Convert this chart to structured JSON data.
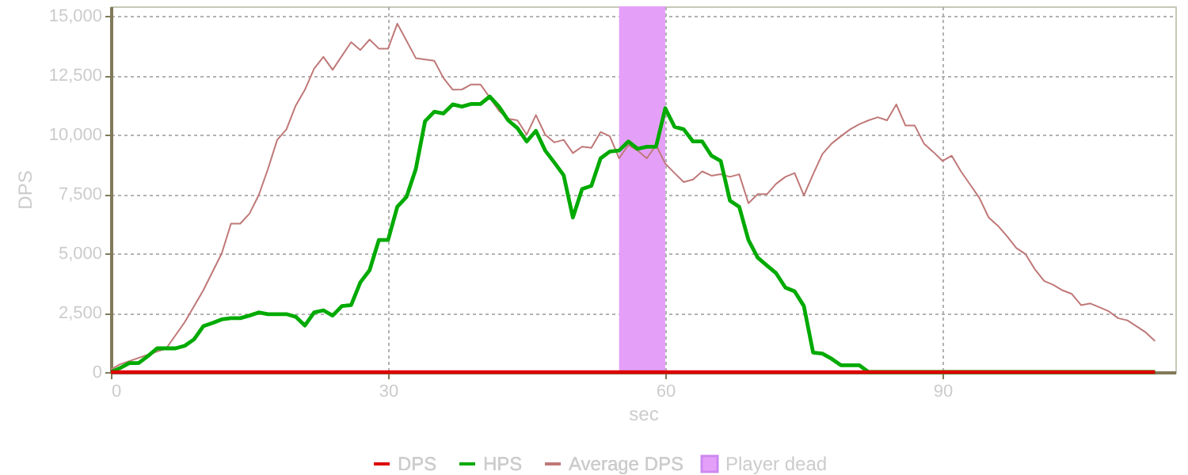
{
  "chart_data": {
    "type": "line",
    "xlabel": "sec",
    "ylabel": "DPS",
    "xlim": [
      0,
      115.2
    ],
    "ylim": [
      0,
      15400
    ],
    "xticks": [
      0,
      30,
      60,
      90
    ],
    "yticks": [
      0,
      {
        "value": 2500,
        "label": "2,500"
      },
      {
        "value": 5000,
        "label": "5,000"
      },
      {
        "value": 7500,
        "label": "7,500"
      },
      {
        "value": 10000,
        "label": "10,000"
      },
      {
        "value": 12500,
        "label": "12,500"
      },
      {
        "value": 15000,
        "label": "15,000"
      }
    ],
    "grid": true,
    "legend": "bottom",
    "line_style": "solid",
    "marker": "none",
    "series": [
      {
        "name": "DPS",
        "color": "#dd0000",
        "x": [
          0,
          113
        ],
        "values": [
          0,
          0
        ]
      },
      {
        "name": "HPS",
        "color": "#00aa00",
        "x": [
          0,
          1,
          2,
          3,
          4,
          5,
          6,
          7,
          8,
          9,
          10,
          11,
          12,
          13,
          14,
          15,
          16,
          17,
          18,
          19,
          20,
          21,
          22,
          23,
          24,
          25,
          26,
          27,
          28,
          29,
          30,
          31,
          32,
          33,
          34,
          35,
          36,
          37,
          38,
          39,
          40,
          41,
          42,
          43,
          44,
          45,
          46,
          47,
          48,
          49,
          50,
          51,
          52,
          53,
          54,
          55,
          56,
          57,
          58,
          59,
          60,
          61,
          62,
          63,
          64,
          65,
          66,
          67,
          68,
          69,
          70,
          71,
          72,
          73,
          74,
          75,
          76,
          77,
          78,
          79,
          80,
          81,
          82,
          113
        ],
        "values": [
          0,
          170,
          380,
          380,
          670,
          1000,
          1000,
          1000,
          1110,
          1380,
          1930,
          2070,
          2220,
          2270,
          2270,
          2380,
          2510,
          2440,
          2440,
          2440,
          2330,
          1960,
          2510,
          2600,
          2380,
          2780,
          2820,
          3780,
          4290,
          5560,
          5560,
          6960,
          7380,
          8550,
          10560,
          10960,
          10890,
          11270,
          11180,
          11290,
          11290,
          11600,
          11180,
          10600,
          10270,
          9710,
          10160,
          9330,
          8820,
          8290,
          6510,
          7710,
          7840,
          9000,
          9290,
          9330,
          9710,
          9400,
          9490,
          9490,
          11110,
          10330,
          10220,
          9710,
          9710,
          9110,
          8890,
          7220,
          6960,
          5560,
          4820,
          4490,
          4160,
          3560,
          3400,
          2780,
          820,
          780,
          560,
          290,
          290,
          290,
          0,
          0
        ]
      },
      {
        "name": "Average DPS",
        "color": "#c07878",
        "x": [
          0,
          1,
          6,
          8,
          10,
          12,
          13,
          14,
          15,
          16,
          17,
          18,
          19,
          20,
          21,
          22,
          23,
          24,
          26,
          27,
          28,
          29,
          30,
          31,
          33,
          35,
          36,
          37,
          38,
          39,
          40,
          41,
          42,
          43,
          44,
          45,
          46,
          47,
          48,
          49,
          50,
          51,
          52,
          53,
          54,
          55,
          56,
          57,
          58,
          59,
          60,
          61,
          62,
          63,
          64,
          65,
          66,
          67,
          68,
          69,
          70,
          71,
          72,
          73,
          74,
          75,
          76,
          77,
          78,
          79,
          80,
          81,
          82,
          83,
          84,
          85,
          86,
          87,
          88,
          89,
          90,
          91,
          92,
          93,
          94,
          95,
          96,
          97,
          98,
          99,
          100,
          101,
          102,
          103,
          104,
          105,
          106,
          107,
          108,
          109,
          110,
          111,
          112,
          113
        ],
        "values": [
          110,
          330,
          1000,
          2110,
          3440,
          5000,
          6250,
          6250,
          6670,
          7450,
          8550,
          9780,
          10220,
          11220,
          11890,
          12780,
          13270,
          12730,
          13890,
          13560,
          14000,
          13620,
          13620,
          14670,
          13220,
          13110,
          12380,
          11890,
          11900,
          12110,
          12110,
          11560,
          11000,
          10670,
          10600,
          10000,
          10820,
          10000,
          9670,
          9780,
          9220,
          9490,
          9440,
          10110,
          9930,
          9000,
          9560,
          9330,
          9000,
          9560,
          8780,
          8380,
          8000,
          8110,
          8450,
          8270,
          8330,
          8220,
          8330,
          7110,
          7490,
          7490,
          7930,
          8220,
          8380,
          7440,
          8330,
          9180,
          9620,
          9930,
          10220,
          10440,
          10600,
          10730,
          10600,
          11270,
          10380,
          10380,
          9620,
          9270,
          8890,
          9110,
          8450,
          7890,
          7330,
          6510,
          6160,
          5710,
          5220,
          4960,
          4330,
          3840,
          3670,
          3440,
          3290,
          2820,
          2890,
          2730,
          2560,
          2270,
          2180,
          1930,
          1670,
          1310
        ]
      }
    ],
    "bands": [
      {
        "axis": "x",
        "from": 55,
        "to": 60,
        "label": "Player dead",
        "color": "#e4a0f8"
      }
    ]
  }
}
